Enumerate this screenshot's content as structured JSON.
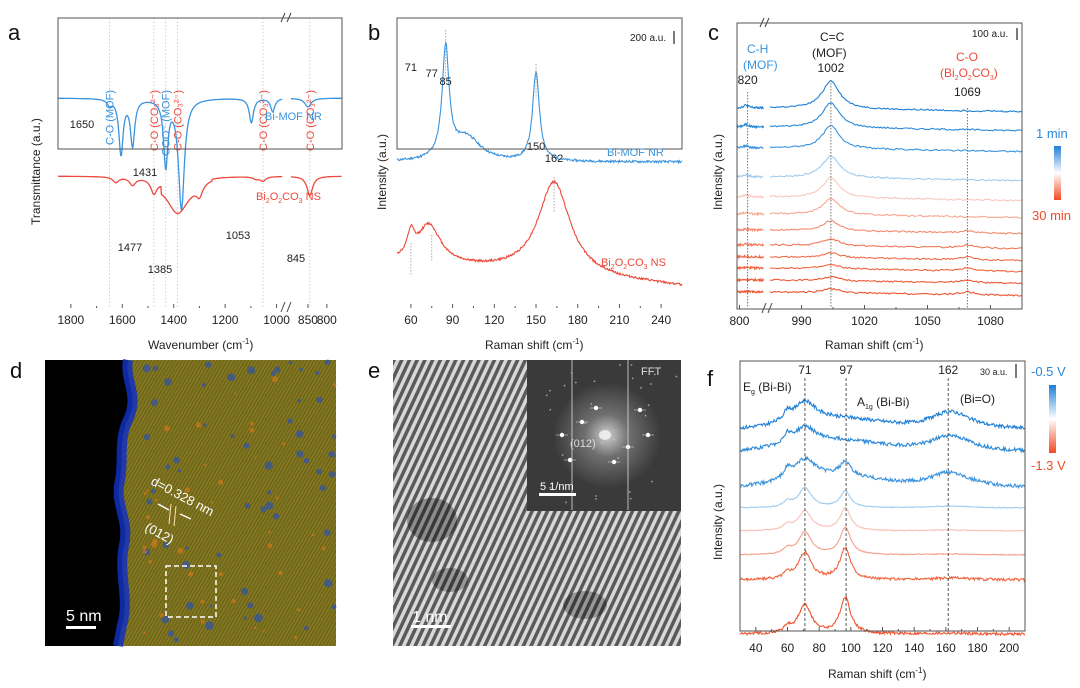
{
  "figure": {
    "panel_letters": [
      "a",
      "b",
      "c",
      "d",
      "e",
      "f"
    ]
  },
  "colors": {
    "blue": "#3a93de",
    "red": "#ec4a3c",
    "text": "#222222",
    "gradient_blue": "#1f7fd6",
    "gradient_red": "#f04a24"
  },
  "chart_data": [
    {
      "id": "a",
      "type": "line",
      "title": "",
      "xlabel": "Wavenumber (cm⁻¹)",
      "ylabel": "Transmittance (a.u.)",
      "xlim_segment1": [
        1850,
        975
      ],
      "xlim_segment2": [
        900,
        760
      ],
      "x_ticks": [
        "1800",
        "1600",
        "1400",
        "1200",
        "1000",
        "850",
        "800"
      ],
      "axis_break": true,
      "series": [
        {
          "name": "Bi-MOF NR",
          "color": "blue",
          "baseline": 0.0,
          "peaks": [
            {
              "x": 1650,
              "depth": 0.05
            },
            {
              "x": 1605,
              "depth": 0.5
            },
            {
              "x": 1560,
              "depth": 0.42
            },
            {
              "x": 1431,
              "depth": 0.6
            },
            {
              "x": 1370,
              "depth": 1.0
            },
            {
              "x": 1098,
              "depth": 0.22
            },
            {
              "x": 1015,
              "depth": 0.12
            },
            {
              "x": 850,
              "depth": 0.08
            }
          ]
        },
        {
          "name": "Bi₂O₂CO₃ NS",
          "color": "red",
          "baseline": 0.0,
          "peaks": [
            {
              "x": 1625,
              "depth": 0.1
            },
            {
              "x": 1560,
              "depth": 0.14
            },
            {
              "x": 1477,
              "depth": 0.25
            },
            {
              "x": 1385,
              "depth": 0.42
            },
            {
              "x": 1300,
              "depth": 0.2
            },
            {
              "x": 1080,
              "depth": 0.04
            },
            {
              "x": 1053,
              "depth": 0.08
            },
            {
              "x": 845,
              "depth": 0.35
            }
          ]
        }
      ],
      "peak_labels": [
        "1650",
        "1431",
        "1477",
        "1385",
        "1053",
        "845"
      ],
      "band_annotations": [
        {
          "text": "C-O (MOF)",
          "x": 1650,
          "color": "blue"
        },
        {
          "text": "C-O (CO₃²⁻)",
          "x": 1477,
          "color": "red"
        },
        {
          "text": "COO⁻ (MOF)",
          "x": 1431,
          "color": "blue"
        },
        {
          "text": "C-O (CO₃²⁻)",
          "x": 1385,
          "color": "red"
        },
        {
          "text": "C-O (CO₃²⁻)",
          "x": 1053,
          "color": "red"
        },
        {
          "text": "C-O (CO₃²⁻)",
          "x": 845,
          "color": "red"
        }
      ]
    },
    {
      "id": "b",
      "type": "line",
      "xlabel": "Raman shift (cm⁻¹)",
      "ylabel": "Intensity (a.u.)",
      "xlim": [
        50,
        255
      ],
      "x_ticks": [
        60,
        90,
        120,
        150,
        180,
        210,
        240
      ],
      "scale_bar": "200 a.u.",
      "series": [
        {
          "name": "Bi-MOF NR",
          "color": "blue",
          "peaks": [
            {
              "x": 85,
              "height": 1.0,
              "width": 3
            },
            {
              "x": 100,
              "height": 0.22,
              "width": 12
            },
            {
              "x": 150,
              "height": 0.8,
              "width": 3
            }
          ]
        },
        {
          "name": "Bi₂O₂CO₃ NS",
          "color": "red",
          "peaks": [
            {
              "x": 60,
              "height": 0.2,
              "width": 3
            },
            {
              "x": 73,
              "height": 0.35,
              "width": 10
            },
            {
              "x": 163,
              "height": 0.85,
              "width": 14
            }
          ]
        }
      ],
      "peak_labels": [
        "85",
        "150",
        "71",
        "77",
        "162"
      ]
    },
    {
      "id": "c",
      "type": "line",
      "xlabel": "Raman shift (cm⁻¹)",
      "ylabel": "Intensity (a.u.)",
      "x_ticks": [
        "800",
        "990",
        "1020",
        "1050",
        "1080"
      ],
      "axis_break": true,
      "scale_bar": "100 a.u.",
      "time_range": [
        "1 min",
        "30 min"
      ],
      "n_series": 12,
      "peak_labels": [
        "820",
        "1002",
        "1069"
      ],
      "band_annotations": [
        {
          "text": "C-H",
          "sub": "(MOF)",
          "color": "blue"
        },
        {
          "text": "C=C",
          "sub": "(MOF)",
          "color": "text"
        },
        {
          "text": "C-O",
          "sub": "(Bi₂O₂CO₃)",
          "color": "red"
        }
      ]
    },
    {
      "id": "f",
      "type": "line",
      "xlabel": "Raman shift (cm⁻¹)",
      "ylabel": "Intensity (a.u.)",
      "xlim": [
        30,
        210
      ],
      "x_ticks": [
        40,
        60,
        80,
        100,
        120,
        140,
        160,
        180,
        200
      ],
      "scale_bar": "30 a.u.",
      "potential_range": [
        "-0.5 V",
        "-1.3 V"
      ],
      "n_series": 8,
      "peak_labels": [
        "71",
        "97",
        "162"
      ],
      "band_annotations": [
        "E_g (Bi-Bi)",
        "A_1g (Bi-Bi)",
        "(Bi=O)"
      ]
    }
  ],
  "images": {
    "d": {
      "d_spacing": "d=0.328 nm",
      "plane": "(012)",
      "scale_bar": "5 nm"
    },
    "e": {
      "inset_title": "FFT",
      "inset_plane": "(012)",
      "inset_scale": "5 1/nm",
      "scale_bar": "1 nm"
    }
  },
  "text": {
    "a_sample1": "Bi-MOF NR",
    "a_sample2": "Bi",
    "b_sample1": "Bi-MOF NR",
    "ylabel_a": "Transmittance (a.u.)",
    "ylabel_int": "Intensity (a.u.)",
    "xlabel_a": "Wavenumber (cm",
    "xlabel_raman": "Raman shift (cm",
    "sup_m1": "-1",
    "close_paren": ")",
    "c_time_top": "1 min",
    "c_time_bottom": "30 min",
    "f_pot_top": "-0.5 V",
    "f_pot_bottom": "-1.3 V",
    "scale_b": "200 a.u.",
    "scale_c": "100 a.u.",
    "scale_f": "30 a.u.",
    "d_spacing": "d=0.328 nm",
    "d_plane": "(012)",
    "d_scale": "5 nm",
    "e_fft": "FFT",
    "e_plane": "(012)",
    "e_inset_scale": "5 1/nm",
    "e_scale": "1 nm",
    "c_ch": "C-H",
    "c_mof": "(MOF)",
    "c_cc": "C=C",
    "c_co": "C-O",
    "f_eg": "E",
    "f_eg_sub": "g",
    "f_bibi": " (Bi-Bi)",
    "f_a": "A",
    "f_a_sub": "1g",
    "f_bio": "(Bi=O)"
  }
}
